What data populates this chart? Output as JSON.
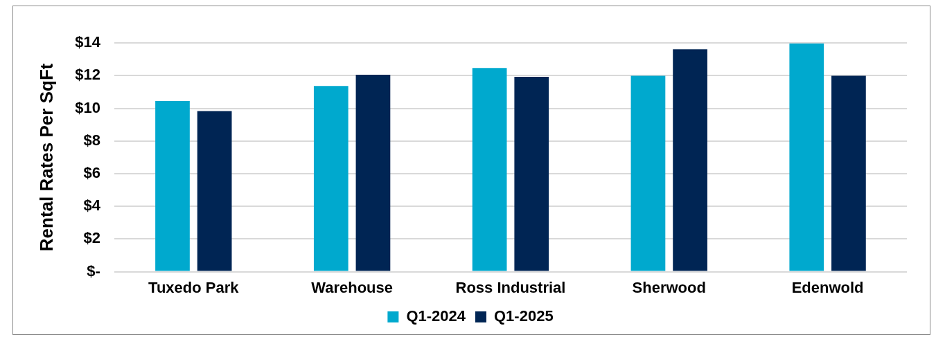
{
  "chart_data": {
    "type": "bar",
    "ylabel": "Rental Rates Per SqFt",
    "categories": [
      "Tuxedo Park",
      "Warehouse",
      "Ross Industrial",
      "Sherwood",
      "Edenwold"
    ],
    "series": [
      {
        "name": "Q1-2024",
        "color": "#00a9ce",
        "values": [
          10.45,
          11.37,
          12.47,
          12.0,
          13.98
        ]
      },
      {
        "name": "Q1-2025",
        "color": "#002554",
        "values": [
          9.83,
          12.06,
          11.93,
          13.62,
          12.0
        ]
      }
    ],
    "ylim": [
      0,
      14
    ],
    "yticks": [
      {
        "value": 0,
        "label": "$-"
      },
      {
        "value": 2,
        "label": "$2"
      },
      {
        "value": 4,
        "label": "$4"
      },
      {
        "value": 6,
        "label": "$6"
      },
      {
        "value": 8,
        "label": "$8"
      },
      {
        "value": 10,
        "label": "$10"
      },
      {
        "value": 12,
        "label": "$12"
      },
      {
        "value": 14,
        "label": "$14"
      }
    ],
    "grid": "y",
    "legend": "bottom"
  }
}
